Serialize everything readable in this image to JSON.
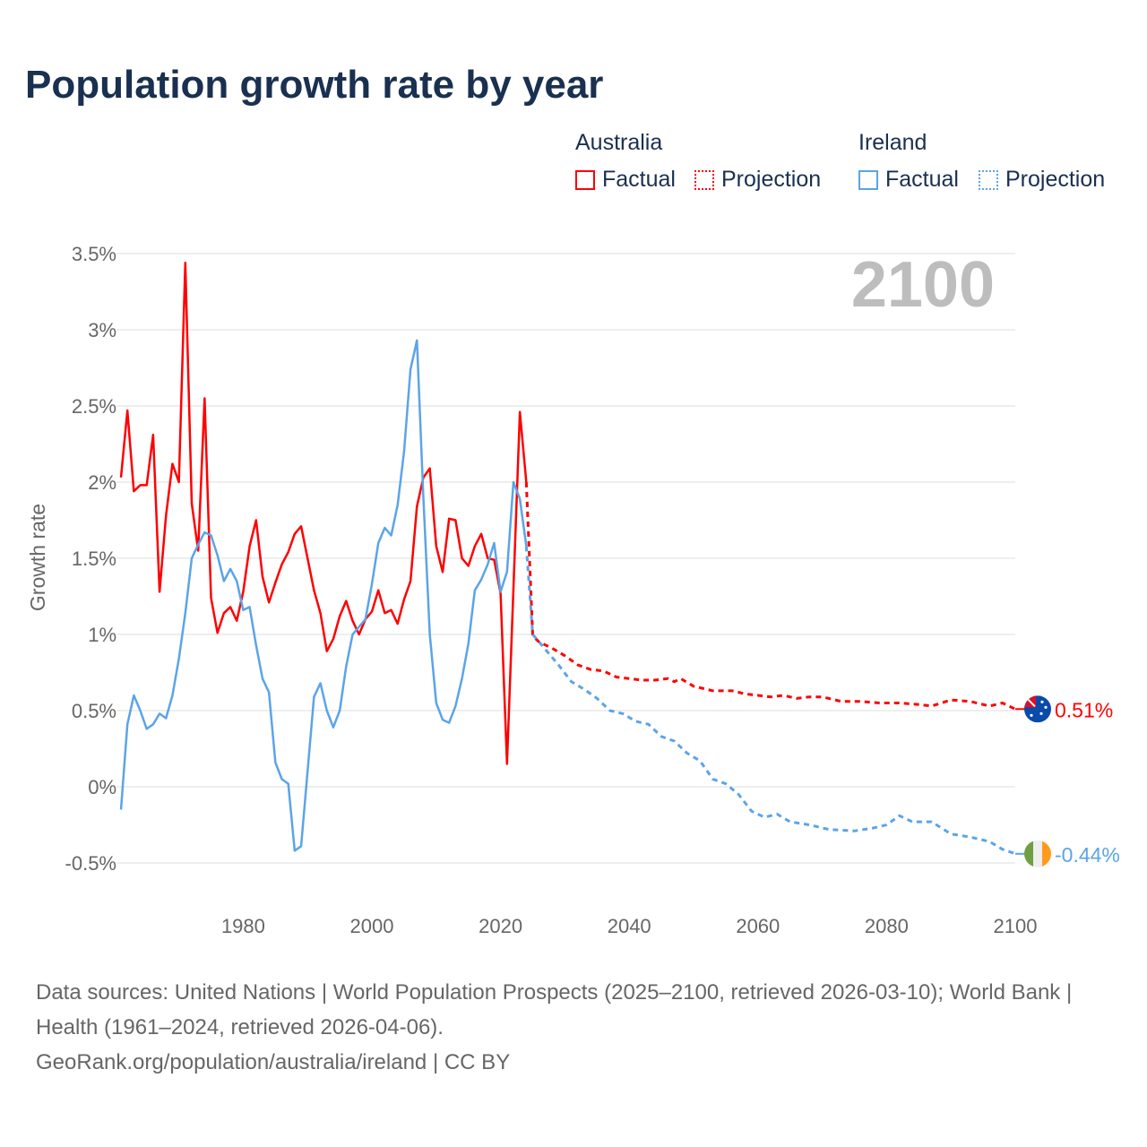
{
  "title": "Population growth rate by year",
  "legend": {
    "groups": [
      {
        "country": "Australia",
        "factual": "Factual",
        "projection": "Projection",
        "color": "#ff0000"
      },
      {
        "country": "Ireland",
        "factual": "Factual",
        "projection": "Projection",
        "color": "#5ba4e8"
      }
    ]
  },
  "footer": {
    "sources": "Data sources: United Nations | World Population Prospects (2025–2100, retrieved 2026-03-10); World Bank | Health (1961–2024, retrieved 2026-04-06).",
    "link": "GeoRank.org/population/australia/ireland | CC BY"
  },
  "chart_data": {
    "type": "line",
    "title": "Population growth rate by year",
    "ylabel": "Growth rate",
    "xlabel": "",
    "year_watermark": "2100",
    "xlim": [
      1961,
      2100
    ],
    "ylim": [
      -0.5,
      3.5
    ],
    "x_ticks": [
      "1980",
      "2000",
      "2020",
      "2040",
      "2060",
      "2080",
      "2100"
    ],
    "y_ticks": [
      "-0.5%",
      "0%",
      "0.5%",
      "1%",
      "1.5%",
      "2%",
      "2.5%",
      "3%",
      "3.5%"
    ],
    "grid": true,
    "series": [
      {
        "name": "Australia",
        "color": "#ff0000",
        "end_label": "0.51%",
        "factual_start": 1961,
        "factual": [
          2.03,
          2.47,
          1.94,
          1.98,
          1.98,
          2.31,
          1.28,
          1.78,
          2.12,
          2.0,
          3.44,
          1.86,
          1.55,
          2.55,
          1.24,
          1.01,
          1.14,
          1.18,
          1.09,
          1.28,
          1.58,
          1.75,
          1.38,
          1.21,
          1.34,
          1.46,
          1.54,
          1.66,
          1.71,
          1.5,
          1.29,
          1.14,
          0.89,
          0.97,
          1.12,
          1.22,
          1.09,
          1.0,
          1.1,
          1.15,
          1.29,
          1.14,
          1.16,
          1.07,
          1.23,
          1.35,
          1.84,
          2.03,
          2.09,
          1.58,
          1.41,
          1.76,
          1.75,
          1.5,
          1.45,
          1.58,
          1.66,
          1.5,
          1.49,
          1.27,
          0.15,
          1.3,
          2.46,
          2.0
        ],
        "projection": [
          [
            2025,
            0.99
          ],
          [
            2026,
            0.95
          ],
          [
            2028,
            0.91
          ],
          [
            2030,
            0.86
          ],
          [
            2032,
            0.8
          ],
          [
            2034,
            0.77
          ],
          [
            2036,
            0.76
          ],
          [
            2038,
            0.72
          ],
          [
            2040,
            0.71
          ],
          [
            2042,
            0.7
          ],
          [
            2044,
            0.7
          ],
          [
            2046,
            0.71
          ],
          [
            2047,
            0.69
          ],
          [
            2048,
            0.71
          ],
          [
            2050,
            0.66
          ],
          [
            2053,
            0.63
          ],
          [
            2056,
            0.63
          ],
          [
            2058,
            0.61
          ],
          [
            2060,
            0.6
          ],
          [
            2062,
            0.59
          ],
          [
            2064,
            0.6
          ],
          [
            2066,
            0.58
          ],
          [
            2068,
            0.59
          ],
          [
            2070,
            0.59
          ],
          [
            2073,
            0.56
          ],
          [
            2076,
            0.56
          ],
          [
            2079,
            0.55
          ],
          [
            2082,
            0.55
          ],
          [
            2085,
            0.54
          ],
          [
            2087,
            0.53
          ],
          [
            2090,
            0.57
          ],
          [
            2093,
            0.56
          ],
          [
            2096,
            0.53
          ],
          [
            2098,
            0.55
          ],
          [
            2100,
            0.51
          ]
        ]
      },
      {
        "name": "Ireland",
        "color": "#5ba4e8",
        "end_label": "-0.44%",
        "factual_start": 1961,
        "factual": [
          -0.15,
          0.41,
          0.6,
          0.5,
          0.38,
          0.41,
          0.48,
          0.45,
          0.6,
          0.84,
          1.14,
          1.5,
          1.59,
          1.67,
          1.65,
          1.52,
          1.35,
          1.43,
          1.35,
          1.16,
          1.18,
          0.93,
          0.71,
          0.62,
          0.16,
          0.05,
          0.02,
          -0.42,
          -0.39,
          0.1,
          0.59,
          0.68,
          0.5,
          0.39,
          0.5,
          0.79,
          1.0,
          1.05,
          1.1,
          1.33,
          1.6,
          1.7,
          1.65,
          1.85,
          2.2,
          2.74,
          2.93,
          1.9,
          1.0,
          0.55,
          0.44,
          0.42,
          0.53,
          0.71,
          0.94,
          1.29,
          1.36,
          1.46,
          1.6,
          1.28,
          1.41,
          2.0,
          1.89,
          1.58
        ],
        "projection": [
          [
            2025,
            1.0
          ],
          [
            2027,
            0.9
          ],
          [
            2029,
            0.8
          ],
          [
            2031,
            0.69
          ],
          [
            2033,
            0.64
          ],
          [
            2035,
            0.58
          ],
          [
            2037,
            0.5
          ],
          [
            2039,
            0.48
          ],
          [
            2041,
            0.43
          ],
          [
            2043,
            0.41
          ],
          [
            2045,
            0.33
          ],
          [
            2047,
            0.3
          ],
          [
            2049,
            0.22
          ],
          [
            2051,
            0.17
          ],
          [
            2053,
            0.05
          ],
          [
            2055,
            0.02
          ],
          [
            2057,
            -0.05
          ],
          [
            2059,
            -0.16
          ],
          [
            2061,
            -0.2
          ],
          [
            2063,
            -0.18
          ],
          [
            2065,
            -0.23
          ],
          [
            2068,
            -0.25
          ],
          [
            2071,
            -0.28
          ],
          [
            2075,
            -0.29
          ],
          [
            2078,
            -0.27
          ],
          [
            2080,
            -0.25
          ],
          [
            2082,
            -0.19
          ],
          [
            2084,
            -0.23
          ],
          [
            2087,
            -0.23
          ],
          [
            2090,
            -0.31
          ],
          [
            2093,
            -0.33
          ],
          [
            2096,
            -0.36
          ],
          [
            2098,
            -0.41
          ],
          [
            2100,
            -0.44
          ]
        ]
      }
    ]
  }
}
